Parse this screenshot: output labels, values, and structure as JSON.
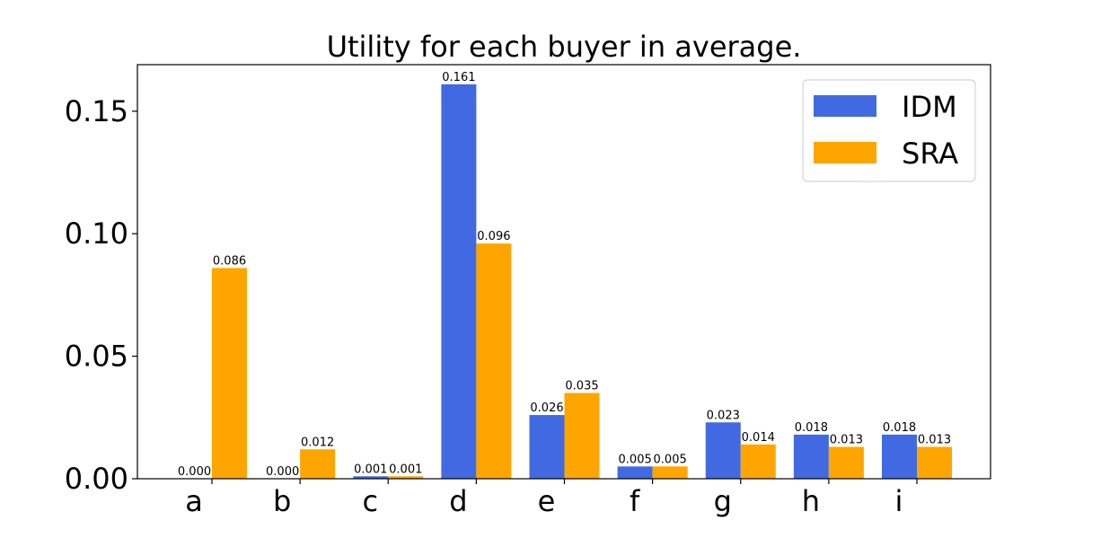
{
  "chart_data": {
    "type": "bar",
    "title": "Utility for each buyer in average.",
    "xlabel": "",
    "ylabel": "",
    "categories": [
      "a",
      "b",
      "c",
      "d",
      "e",
      "f",
      "g",
      "h",
      "i"
    ],
    "series": [
      {
        "name": "IDM",
        "color": "#4169e1",
        "values": [
          0.0,
          0.0,
          0.001,
          0.161,
          0.026,
          0.005,
          0.023,
          0.018,
          0.018
        ],
        "labels": [
          "0.000",
          "0.000",
          "0.001",
          "0.161",
          "0.026",
          "0.005",
          "0.023",
          "0.018",
          "0.018"
        ]
      },
      {
        "name": "SRA",
        "color": "#ffa500",
        "values": [
          0.086,
          0.012,
          0.001,
          0.096,
          0.035,
          0.005,
          0.014,
          0.013,
          0.013
        ],
        "labels": [
          "0.086",
          "0.012",
          "0.001",
          "0.096",
          "0.035",
          "0.005",
          "0.014",
          "0.013",
          "0.013"
        ]
      }
    ],
    "yticks": [
      0.0,
      0.05,
      0.1,
      0.15
    ],
    "ytick_labels": [
      "0.00",
      "0.05",
      "0.10",
      "0.15"
    ],
    "ylim": [
      0,
      0.169
    ],
    "grid": false,
    "legend_position": "top-right"
  }
}
